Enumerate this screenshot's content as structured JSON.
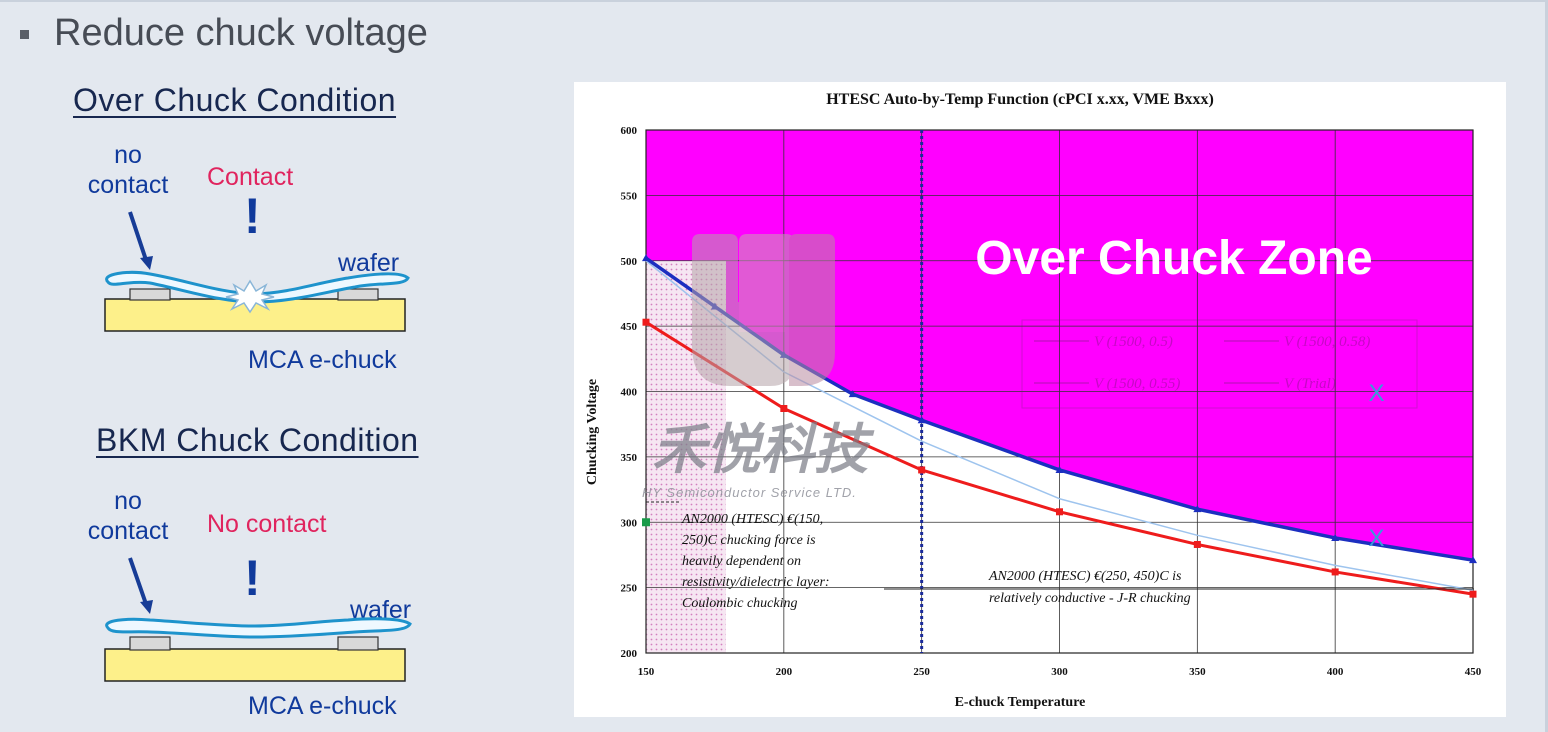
{
  "slide": {
    "heading": "Reduce chuck voltage",
    "over": {
      "title": "Over Chuck Condition",
      "no_contact": [
        "no",
        "contact"
      ],
      "contact": "Contact",
      "bang": "!",
      "wafer": "wafer",
      "chuck": "MCA e-chuck"
    },
    "bkm": {
      "title": "BKM Chuck Condition",
      "no_contact": [
        "no",
        "contact"
      ],
      "contact": "No contact",
      "bang": "!",
      "wafer": "wafer",
      "chuck": "MCA e-chuck"
    }
  },
  "chart_data": {
    "type": "line",
    "title": "HTESC Auto-by-Temp Function (cPCI x.xx, VME Bxxx)",
    "xlabel": "E-chuck Temperature",
    "ylabel": "Chucking Voltage",
    "xlim": [
      150,
      450
    ],
    "ylim": [
      200,
      600
    ],
    "xticks": [
      150,
      200,
      250,
      300,
      350,
      400,
      450
    ],
    "yticks": [
      200,
      250,
      300,
      350,
      400,
      450,
      500,
      550,
      600
    ],
    "grid": true,
    "legend_position": "upper-right (faded)",
    "legend": [
      "V (1500, 0.5)",
      "V (1500, 0.58)",
      "V (1500, 0.55)",
      "V (Trial)"
    ],
    "series": [
      {
        "color": "#1c2fc0",
        "x": [
          150,
          175,
          200,
          225,
          250,
          300,
          350,
          400,
          450
        ],
        "y": [
          502,
          465,
          428,
          398,
          378,
          340,
          310,
          288,
          271
        ]
      },
      {
        "color": "#ee1c1c",
        "x": [
          150,
          200,
          250,
          300,
          350,
          400,
          450
        ],
        "y": [
          453,
          387,
          340,
          308,
          283,
          262,
          245
        ]
      },
      {
        "color": "#9ec4ee",
        "x": [
          150,
          200,
          250,
          300,
          350,
          400,
          450
        ],
        "y": [
          500,
          415,
          362,
          318,
          290,
          267,
          248
        ]
      }
    ],
    "extra_points": [
      {
        "x": 150,
        "y": 300,
        "color": "#1a9a4a"
      },
      {
        "x": 415,
        "y": 399,
        "label": "X",
        "color": "#3a9ad9"
      },
      {
        "x": 415,
        "y": 288,
        "label": "X",
        "color": "#3a9ad9"
      }
    ],
    "zones": {
      "over_label": "Over Chuck Zone",
      "over_color": "#ff00ff",
      "hatched_region_x": [
        150,
        158
      ]
    },
    "vline_x": 250,
    "annotations": [
      {
        "lines": [
          "AN2000 (HTESC) €(150,",
          "250)C chucking force is",
          "heavily dependent on",
          "resistivity/dielectric layer:",
          "Coulombic chucking"
        ]
      },
      {
        "lines": [
          "AN2000 (HTESC) €(250, 450)C is",
          "relatively conductive - J-R chucking"
        ]
      }
    ],
    "watermark": {
      "cn": "禾悦科技",
      "en": "HY Semiconductor Service LTD."
    }
  }
}
